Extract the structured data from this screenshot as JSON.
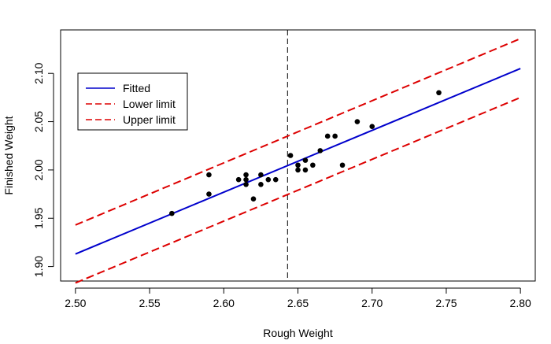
{
  "chart_data": {
    "type": "scatter",
    "title": "",
    "xlabel": "Rough Weight",
    "ylabel": "Finished Weight",
    "xlim": [
      2.49,
      2.81
    ],
    "ylim": [
      1.885,
      2.145
    ],
    "x_ticks": [
      2.5,
      2.55,
      2.6,
      2.65,
      2.7,
      2.75,
      2.8
    ],
    "x_tick_labels": [
      "2.50",
      "2.55",
      "2.60",
      "2.65",
      "2.70",
      "2.75",
      "2.80"
    ],
    "y_ticks": [
      1.9,
      1.95,
      2.0,
      2.05,
      2.1
    ],
    "y_tick_labels": [
      "1.90",
      "1.95",
      "2.00",
      "2.05",
      "2.10"
    ],
    "grid": false,
    "legend_position": "top-left",
    "points": {
      "color": "#000000",
      "x": [
        2.565,
        2.59,
        2.59,
        2.61,
        2.615,
        2.615,
        2.615,
        2.62,
        2.625,
        2.625,
        2.63,
        2.635,
        2.645,
        2.65,
        2.65,
        2.655,
        2.655,
        2.66,
        2.665,
        2.67,
        2.675,
        2.68,
        2.69,
        2.7,
        2.745
      ],
      "y": [
        1.955,
        1.975,
        1.995,
        1.99,
        1.985,
        1.99,
        1.995,
        1.97,
        1.985,
        1.995,
        1.99,
        1.99,
        2.015,
        2.0,
        2.005,
        2.0,
        2.01,
        2.005,
        2.02,
        2.035,
        2.035,
        2.005,
        2.05,
        2.045,
        2.08
      ]
    },
    "series": [
      {
        "name": "Fitted",
        "color": "#0000cc",
        "dash": "solid",
        "x": [
          2.5,
          2.8
        ],
        "y": [
          1.913,
          2.105
        ]
      },
      {
        "name": "Lower limit",
        "color": "#dd0000",
        "dash": "dashed",
        "x": [
          2.5,
          2.8
        ],
        "y": [
          1.883,
          2.075
        ]
      },
      {
        "name": "Upper limit",
        "color": "#dd0000",
        "dash": "dashed",
        "x": [
          2.5,
          2.8
        ],
        "y": [
          1.943,
          2.136
        ]
      }
    ],
    "vertical_reference_line": {
      "x": 2.643,
      "color": "#000000",
      "dash": "dashed"
    }
  }
}
